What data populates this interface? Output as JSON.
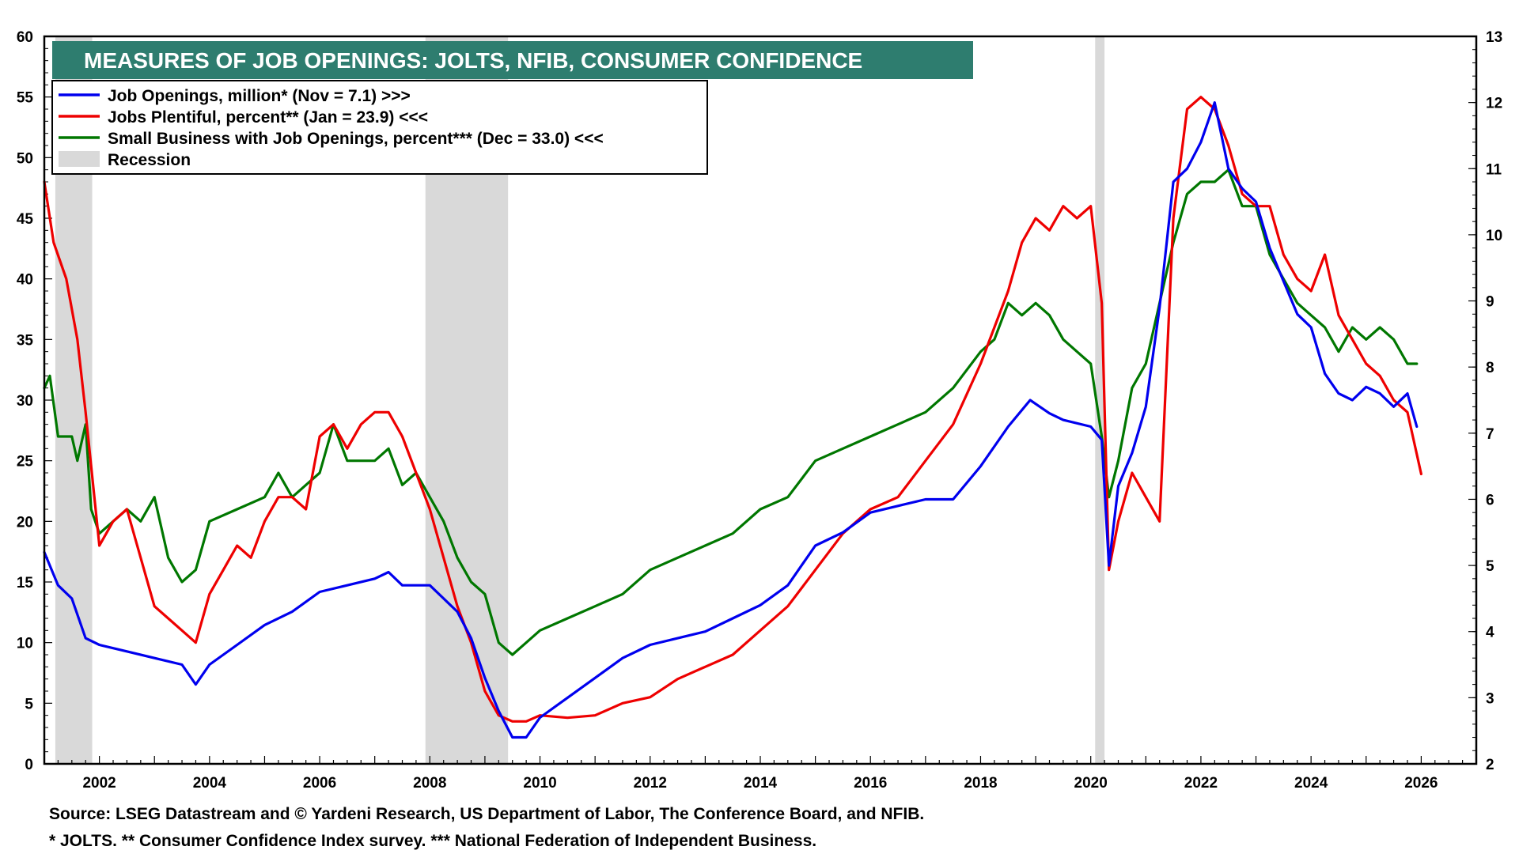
{
  "chart_data": {
    "type": "line",
    "title": "MEASURES OF JOB OPENINGS: JOLTS, NFIB, CONSUMER CONFIDENCE",
    "x_range": [
      2001.0,
      2027.0
    ],
    "x_ticks": [
      2002,
      2004,
      2006,
      2008,
      2010,
      2012,
      2014,
      2016,
      2018,
      2020,
      2022,
      2024,
      2026
    ],
    "y_left": {
      "range": [
        0,
        60
      ],
      "ticks": [
        0,
        5,
        10,
        15,
        20,
        25,
        30,
        35,
        40,
        45,
        50,
        55,
        60
      ]
    },
    "y_right": {
      "range": [
        2,
        13
      ],
      "ticks": [
        2,
        3,
        4,
        5,
        6,
        7,
        8,
        9,
        10,
        11,
        12,
        13
      ]
    },
    "recessions": [
      [
        2001.2,
        2001.87
      ],
      [
        2007.92,
        2009.42
      ],
      [
        2020.08,
        2020.25
      ]
    ],
    "legend": [
      {
        "label": "Job Openings, million* (Nov = 7.1) >>>",
        "color": "#0000ee",
        "kind": "line"
      },
      {
        "label": "Jobs Plentiful, percent** (Jan = 23.9) <<<",
        "color": "#ee0000",
        "kind": "line"
      },
      {
        "label": "Small Business with Job Openings, percent*** (Dec = 33.0) <<<",
        "color": "#007700",
        "kind": "line"
      },
      {
        "label": "Recession",
        "color": "#d9d9d9",
        "kind": "box"
      }
    ],
    "series": [
      {
        "name": "Job Openings, million",
        "axis": "right",
        "color": "#0000ee",
        "x": [
          2001.0,
          2001.25,
          2001.5,
          2001.75,
          2002.0,
          2002.5,
          2003.0,
          2003.5,
          2003.75,
          2004.0,
          2004.5,
          2005.0,
          2005.5,
          2006.0,
          2006.5,
          2007.0,
          2007.25,
          2007.5,
          2008.0,
          2008.25,
          2008.5,
          2008.75,
          2009.0,
          2009.25,
          2009.5,
          2009.75,
          2010.0,
          2010.5,
          2011.0,
          2011.5,
          2012.0,
          2012.5,
          2013.0,
          2013.5,
          2014.0,
          2014.5,
          2015.0,
          2015.5,
          2016.0,
          2016.5,
          2017.0,
          2017.5,
          2018.0,
          2018.5,
          2018.9,
          2019.25,
          2019.5,
          2020.0,
          2020.2,
          2020.33,
          2020.5,
          2020.75,
          2021.0,
          2021.25,
          2021.5,
          2021.75,
          2022.0,
          2022.25,
          2022.5,
          2022.75,
          2023.0,
          2023.25,
          2023.5,
          2023.75,
          2024.0,
          2024.25,
          2024.5,
          2024.75,
          2025.0,
          2025.25,
          2025.5,
          2025.75,
          2025.92
        ],
        "values": [
          5.2,
          4.7,
          4.5,
          3.9,
          3.8,
          3.7,
          3.6,
          3.5,
          3.2,
          3.5,
          3.8,
          4.1,
          4.3,
          4.6,
          4.7,
          4.8,
          4.9,
          4.7,
          4.7,
          4.5,
          4.3,
          3.9,
          3.3,
          2.8,
          2.4,
          2.4,
          2.7,
          3.0,
          3.3,
          3.6,
          3.8,
          3.9,
          4.0,
          4.2,
          4.4,
          4.7,
          5.3,
          5.5,
          5.8,
          5.9,
          6.0,
          6.0,
          6.5,
          7.1,
          7.5,
          7.3,
          7.2,
          7.1,
          6.9,
          5.0,
          6.2,
          6.7,
          7.4,
          8.9,
          10.8,
          11.0,
          11.4,
          12.0,
          11.0,
          10.7,
          10.5,
          9.8,
          9.3,
          8.8,
          8.6,
          7.9,
          7.6,
          7.5,
          7.7,
          7.6,
          7.4,
          7.6,
          7.1
        ]
      },
      {
        "name": "Jobs Plentiful, percent",
        "axis": "left",
        "color": "#ee0000",
        "x": [
          2001.0,
          2001.17,
          2001.4,
          2001.6,
          2001.75,
          2002.0,
          2002.25,
          2002.5,
          2002.75,
          2003.0,
          2003.25,
          2003.5,
          2003.75,
          2004.0,
          2004.25,
          2004.5,
          2004.75,
          2005.0,
          2005.25,
          2005.5,
          2005.75,
          2006.0,
          2006.25,
          2006.5,
          2006.75,
          2007.0,
          2007.25,
          2007.5,
          2007.75,
          2008.0,
          2008.25,
          2008.5,
          2008.75,
          2009.0,
          2009.25,
          2009.5,
          2009.75,
          2010.0,
          2010.5,
          2011.0,
          2011.5,
          2012.0,
          2012.5,
          2013.0,
          2013.5,
          2014.0,
          2014.5,
          2015.0,
          2015.5,
          2016.0,
          2016.5,
          2017.0,
          2017.5,
          2018.0,
          2018.25,
          2018.5,
          2018.75,
          2019.0,
          2019.25,
          2019.5,
          2019.75,
          2020.0,
          2020.2,
          2020.33,
          2020.5,
          2020.75,
          2021.0,
          2021.25,
          2021.5,
          2021.75,
          2022.0,
          2022.25,
          2022.5,
          2022.75,
          2023.0,
          2023.25,
          2023.5,
          2023.75,
          2024.0,
          2024.25,
          2024.5,
          2024.75,
          2025.0,
          2025.25,
          2025.5,
          2025.75,
          2026.0
        ],
        "values": [
          48,
          43,
          40,
          35,
          29,
          18,
          20,
          21,
          17,
          13,
          12,
          11,
          10,
          14,
          16,
          18,
          17,
          20,
          22,
          22,
          21,
          27,
          28,
          26,
          28,
          29,
          29,
          27,
          24,
          21,
          17,
          13,
          10,
          6,
          4,
          3.5,
          3.5,
          4,
          3.8,
          4,
          5,
          5.5,
          7,
          8,
          9,
          11,
          13,
          16,
          19,
          21,
          22,
          25,
          28,
          33,
          36,
          39,
          43,
          45,
          44,
          46,
          45,
          46,
          38,
          16,
          20,
          24,
          22,
          20,
          45,
          54,
          55,
          54,
          51,
          47,
          46,
          46,
          42,
          40,
          39,
          42,
          37,
          35,
          33,
          32,
          30,
          29,
          23.9
        ]
      },
      {
        "name": "Small Business with Job Openings, percent",
        "axis": "left",
        "color": "#007700",
        "x": [
          2001.0,
          2001.1,
          2001.25,
          2001.5,
          2001.6,
          2001.75,
          2001.85,
          2002.0,
          2002.5,
          2002.75,
          2003.0,
          2003.25,
          2003.5,
          2003.75,
          2004.0,
          2004.5,
          2005.0,
          2005.25,
          2005.5,
          2005.75,
          2006.0,
          2006.25,
          2006.5,
          2006.75,
          2007.0,
          2007.25,
          2007.5,
          2007.75,
          2008.0,
          2008.25,
          2008.5,
          2008.75,
          2009.0,
          2009.25,
          2009.5,
          2009.75,
          2010.0,
          2010.5,
          2011.0,
          2011.5,
          2012.0,
          2012.5,
          2013.0,
          2013.5,
          2014.0,
          2014.5,
          2015.0,
          2015.5,
          2016.0,
          2016.5,
          2017.0,
          2017.5,
          2018.0,
          2018.25,
          2018.5,
          2018.75,
          2019.0,
          2019.25,
          2019.5,
          2019.75,
          2020.0,
          2020.2,
          2020.33,
          2020.5,
          2020.75,
          2021.0,
          2021.25,
          2021.5,
          2021.75,
          2022.0,
          2022.25,
          2022.5,
          2022.75,
          2023.0,
          2023.25,
          2023.5,
          2023.75,
          2024.0,
          2024.25,
          2024.5,
          2024.75,
          2025.0,
          2025.25,
          2025.5,
          2025.75,
          2025.92
        ],
        "values": [
          31,
          32,
          27,
          27,
          25,
          28,
          21,
          19,
          21,
          20,
          22,
          17,
          15,
          16,
          20,
          21,
          22,
          24,
          22,
          23,
          24,
          28,
          25,
          25,
          25,
          26,
          23,
          24,
          22,
          20,
          17,
          15,
          14,
          10,
          9,
          10,
          11,
          12,
          13,
          14,
          16,
          17,
          18,
          19,
          21,
          22,
          25,
          26,
          27,
          28,
          29,
          31,
          34,
          35,
          38,
          37,
          38,
          37,
          35,
          34,
          33,
          27,
          22,
          25,
          31,
          33,
          38,
          43,
          47,
          48,
          48,
          49,
          46,
          46,
          42,
          40,
          38,
          37,
          36,
          34,
          36,
          35,
          36,
          35,
          33,
          33
        ]
      }
    ]
  },
  "footnotes": {
    "source": "Source: LSEG Datastream and © Yardeni Research, US Department of Labor, The Conference Board, and NFIB.",
    "notes": "* JOLTS.    ** Consumer Confidence Index survey.    *** National Federation of Independent Business."
  }
}
